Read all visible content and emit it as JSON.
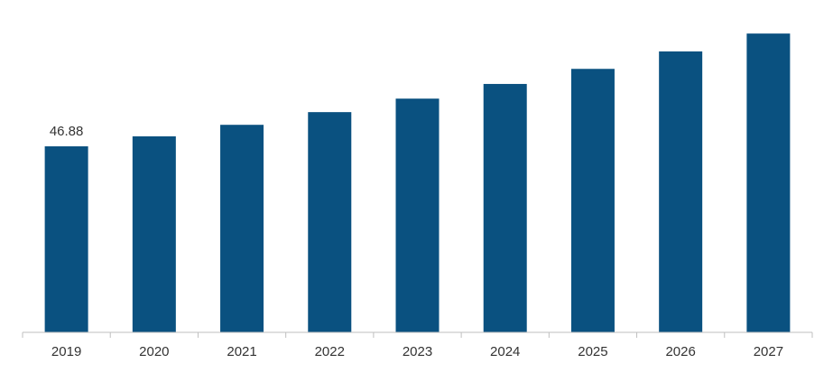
{
  "chart_data": {
    "type": "bar",
    "categories": [
      "2019",
      "2020",
      "2021",
      "2022",
      "2023",
      "2024",
      "2025",
      "2026",
      "2027"
    ],
    "values": [
      46.88,
      49.4,
      52.3,
      55.5,
      58.9,
      62.6,
      66.4,
      70.8,
      75.3
    ],
    "value_labels": [
      "46.88",
      null,
      null,
      null,
      null,
      null,
      null,
      null,
      null
    ],
    "color": "#0a5180",
    "ylim": [
      0,
      80
    ]
  }
}
